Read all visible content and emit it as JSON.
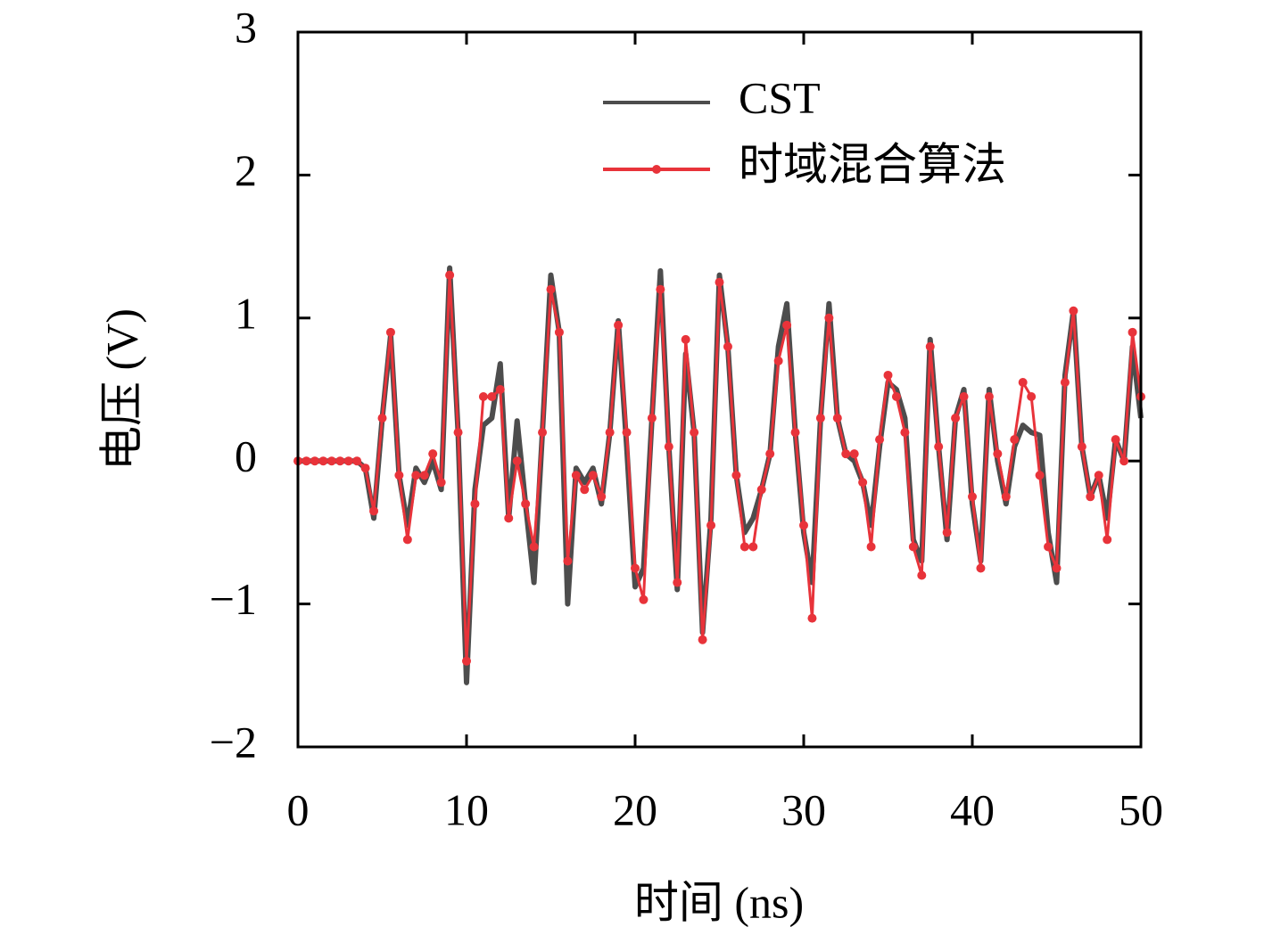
{
  "chart_data": {
    "type": "line",
    "xlabel": "时间 (ns)",
    "ylabel": "电压 (V)",
    "x": [
      0,
      0.5,
      1,
      1.5,
      2,
      2.5,
      3,
      3.5,
      4,
      4.5,
      5,
      5.5,
      6,
      6.5,
      7,
      7.5,
      8,
      8.5,
      9,
      9.5,
      10,
      10.5,
      11,
      11.5,
      12,
      12.5,
      13,
      13.5,
      14,
      14.5,
      15,
      15.5,
      16,
      16.5,
      17,
      17.5,
      18,
      18.5,
      19,
      19.5,
      20,
      20.5,
      21,
      21.5,
      22,
      22.5,
      23,
      23.5,
      24,
      24.5,
      25,
      25.5,
      26,
      26.5,
      27,
      27.5,
      28,
      28.5,
      29,
      29.5,
      30,
      30.5,
      31,
      31.5,
      32,
      32.5,
      33,
      33.5,
      34,
      34.5,
      35,
      35.5,
      36,
      36.5,
      37,
      37.5,
      38,
      38.5,
      39,
      39.5,
      40,
      40.5,
      41,
      41.5,
      42,
      42.5,
      43,
      43.5,
      44,
      44.5,
      45,
      45.5,
      46,
      46.5,
      47,
      47.5,
      48,
      48.5,
      49,
      49.5,
      50
    ],
    "series": [
      {
        "name": "CST",
        "color": "#4d4d4d",
        "markers": false,
        "values": [
          0,
          0,
          0,
          0,
          0,
          0,
          0,
          0,
          -0.05,
          -0.4,
          0.3,
          0.88,
          -0.1,
          -0.45,
          -0.05,
          -0.15,
          0.0,
          -0.2,
          1.35,
          0.2,
          -1.55,
          -0.2,
          0.25,
          0.3,
          0.68,
          -0.4,
          0.28,
          -0.3,
          -0.85,
          0.2,
          1.3,
          0.9,
          -1.0,
          -0.05,
          -0.15,
          -0.05,
          -0.3,
          0.2,
          0.98,
          0.1,
          -0.88,
          -0.75,
          0.3,
          1.33,
          0.1,
          -0.9,
          0.75,
          0.2,
          -1.2,
          -0.4,
          1.3,
          0.8,
          -0.1,
          -0.5,
          -0.4,
          -0.2,
          0.05,
          0.8,
          1.1,
          0.2,
          -0.5,
          -0.85,
          0.3,
          1.1,
          0.3,
          0.05,
          0.0,
          -0.15,
          -0.45,
          0.1,
          0.55,
          0.5,
          0.3,
          -0.55,
          -0.7,
          0.85,
          0.1,
          -0.55,
          0.3,
          0.5,
          -0.3,
          -0.7,
          0.5,
          0.0,
          -0.3,
          0.1,
          0.25,
          0.2,
          0.18,
          -0.5,
          -0.85,
          0.6,
          1.05,
          0.1,
          -0.25,
          -0.1,
          -0.4,
          0.15,
          0.0,
          0.8,
          0.3
        ]
      },
      {
        "name": "时域混合算法",
        "color": "#e8333a",
        "markers": true,
        "values": [
          0,
          0,
          0,
          0,
          0,
          0,
          0,
          0,
          -0.05,
          -0.35,
          0.3,
          0.9,
          -0.1,
          -0.55,
          -0.1,
          -0.1,
          0.05,
          -0.15,
          1.3,
          0.2,
          -1.4,
          -0.3,
          0.45,
          0.45,
          0.5,
          -0.4,
          0.0,
          -0.3,
          -0.6,
          0.2,
          1.2,
          0.9,
          -0.7,
          -0.1,
          -0.2,
          -0.1,
          -0.25,
          0.2,
          0.95,
          0.2,
          -0.75,
          -0.97,
          0.3,
          1.2,
          0.1,
          -0.85,
          0.85,
          0.2,
          -1.25,
          -0.45,
          1.25,
          0.8,
          -0.1,
          -0.6,
          -0.6,
          -0.2,
          0.05,
          0.7,
          0.95,
          0.2,
          -0.45,
          -1.1,
          0.3,
          1.0,
          0.3,
          0.05,
          0.05,
          -0.15,
          -0.6,
          0.15,
          0.6,
          0.45,
          0.2,
          -0.6,
          -0.8,
          0.8,
          0.1,
          -0.5,
          0.3,
          0.45,
          -0.25,
          -0.75,
          0.45,
          0.05,
          -0.25,
          0.15,
          0.55,
          0.45,
          -0.1,
          -0.6,
          -0.75,
          0.55,
          1.05,
          0.1,
          -0.25,
          -0.1,
          -0.55,
          0.15,
          0.0,
          0.9,
          0.45
        ]
      }
    ],
    "xlim": [
      0,
      50
    ],
    "xticks": [
      0,
      10,
      20,
      30,
      40,
      50
    ],
    "ylim": [
      -2,
      3
    ],
    "yticks": [
      {
        "value": -2,
        "label": "−2"
      },
      {
        "value": -1,
        "label": "−1"
      },
      0,
      1,
      2,
      3
    ],
    "legend": "upper right",
    "grid": false
  }
}
